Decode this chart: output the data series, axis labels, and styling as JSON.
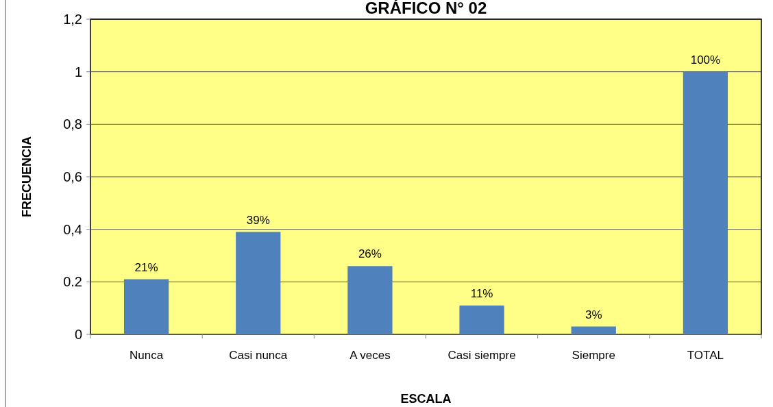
{
  "chart_data": {
    "type": "bar",
    "title": "GRÁFICO N° 02",
    "xlabel": "ESCALA",
    "ylabel": "FRECUENCIA",
    "categories": [
      "Nunca",
      "Casi nunca",
      "A veces",
      "Casi siempre",
      "Siempre",
      "TOTAL"
    ],
    "values": [
      0.21,
      0.39,
      0.26,
      0.11,
      0.03,
      1
    ],
    "value_labels": [
      "21%",
      "39%",
      "26%",
      "11%",
      "3%",
      "100%"
    ],
    "color": "#4f81bd",
    "ylim": [
      0,
      1.2
    ],
    "yticks": [
      0,
      {
        "value": 0.2,
        "label": "0.2"
      },
      {
        "value": 0.4,
        "label": "0,4"
      },
      {
        "value": 0.6,
        "label": "0,6"
      },
      {
        "value": 0.8,
        "label": "0,8"
      },
      1,
      {
        "value": 1.2,
        "label": "1,2"
      }
    ],
    "grid": "y"
  }
}
